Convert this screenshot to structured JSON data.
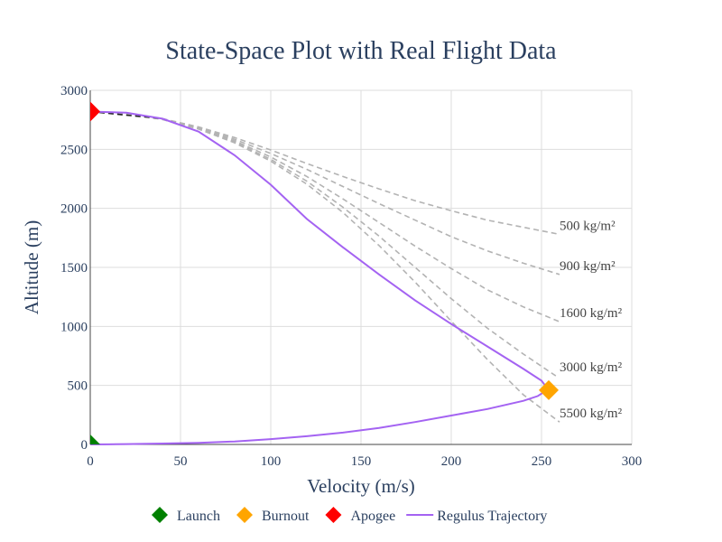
{
  "chart_data": {
    "type": "line",
    "title": "State-Space Plot with Real Flight Data",
    "xlabel": "Velocity (m/s)",
    "ylabel": "Altitude (m)",
    "xlim": [
      0,
      300
    ],
    "ylim": [
      0,
      3000
    ],
    "x_ticks": [
      0,
      50,
      100,
      150,
      200,
      250,
      300
    ],
    "y_ticks": [
      0,
      500,
      1000,
      1500,
      2000,
      2500,
      3000
    ],
    "grid": true,
    "legend_position": "bottom",
    "apogee_altitude": 2820,
    "reference_curves": [
      {
        "label": "500 kg/m²",
        "points": [
          [
            0,
            2820
          ],
          [
            20,
            2805
          ],
          [
            40,
            2760
          ],
          [
            60,
            2690
          ],
          [
            80,
            2600
          ],
          [
            100,
            2495
          ],
          [
            120,
            2380
          ],
          [
            140,
            2270
          ],
          [
            160,
            2165
          ],
          [
            180,
            2065
          ],
          [
            200,
            1980
          ],
          [
            220,
            1900
          ],
          [
            240,
            1840
          ],
          [
            260,
            1780
          ]
        ]
      },
      {
        "label": "900 kg/m²",
        "points": [
          [
            0,
            2820
          ],
          [
            20,
            2805
          ],
          [
            40,
            2760
          ],
          [
            60,
            2685
          ],
          [
            80,
            2585
          ],
          [
            100,
            2465
          ],
          [
            120,
            2330
          ],
          [
            140,
            2185
          ],
          [
            160,
            2040
          ],
          [
            180,
            1900
          ],
          [
            200,
            1760
          ],
          [
            220,
            1640
          ],
          [
            240,
            1535
          ],
          [
            260,
            1440
          ]
        ]
      },
      {
        "label": "1600 kg/m²",
        "points": [
          [
            0,
            2820
          ],
          [
            20,
            2803
          ],
          [
            40,
            2757
          ],
          [
            60,
            2680
          ],
          [
            80,
            2572
          ],
          [
            100,
            2435
          ],
          [
            120,
            2270
          ],
          [
            140,
            2080
          ],
          [
            160,
            1880
          ],
          [
            180,
            1680
          ],
          [
            200,
            1490
          ],
          [
            220,
            1310
          ],
          [
            240,
            1165
          ],
          [
            260,
            1040
          ]
        ]
      },
      {
        "label": "3000 kg/m²",
        "points": [
          [
            0,
            2820
          ],
          [
            20,
            2803
          ],
          [
            40,
            2755
          ],
          [
            60,
            2675
          ],
          [
            80,
            2562
          ],
          [
            100,
            2415
          ],
          [
            120,
            2230
          ],
          [
            140,
            2010
          ],
          [
            160,
            1765
          ],
          [
            180,
            1500
          ],
          [
            200,
            1235
          ],
          [
            220,
            985
          ],
          [
            240,
            765
          ],
          [
            258,
            580
          ]
        ]
      },
      {
        "label": "5500 kg/m²",
        "points": [
          [
            0,
            2820
          ],
          [
            20,
            2802
          ],
          [
            40,
            2753
          ],
          [
            60,
            2672
          ],
          [
            80,
            2555
          ],
          [
            100,
            2400
          ],
          [
            120,
            2205
          ],
          [
            140,
            1965
          ],
          [
            160,
            1685
          ],
          [
            180,
            1375
          ],
          [
            200,
            1045
          ],
          [
            220,
            720
          ],
          [
            240,
            420
          ],
          [
            260,
            190
          ]
        ]
      }
    ],
    "series": [
      {
        "name": "Regulus Trajectory",
        "color": "#a463f2",
        "points": [
          [
            0,
            0
          ],
          [
            10,
            1
          ],
          [
            20,
            3
          ],
          [
            40,
            8
          ],
          [
            60,
            14
          ],
          [
            80,
            25
          ],
          [
            100,
            45
          ],
          [
            120,
            70
          ],
          [
            140,
            100
          ],
          [
            160,
            140
          ],
          [
            180,
            190
          ],
          [
            200,
            245
          ],
          [
            220,
            300
          ],
          [
            240,
            370
          ],
          [
            248,
            410
          ],
          [
            252,
            450
          ],
          [
            253,
            475
          ],
          [
            252,
            500
          ],
          [
            250,
            540
          ],
          [
            240,
            640
          ],
          [
            220,
            830
          ],
          [
            200,
            1020
          ],
          [
            180,
            1220
          ],
          [
            160,
            1440
          ],
          [
            140,
            1670
          ],
          [
            120,
            1910
          ],
          [
            100,
            2200
          ],
          [
            80,
            2450
          ],
          [
            60,
            2650
          ],
          [
            40,
            2760
          ],
          [
            20,
            2810
          ],
          [
            0,
            2820
          ]
        ]
      }
    ],
    "markers": [
      {
        "name": "Launch",
        "x": 0,
        "y": 0,
        "color": "#008000"
      },
      {
        "name": "Burnout",
        "x": 254,
        "y": 460,
        "color": "#ffa500"
      },
      {
        "name": "Apogee",
        "x": 0,
        "y": 2820,
        "color": "#ff0000"
      }
    ],
    "legend": [
      "Launch",
      "Burnout",
      "Apogee",
      "Regulus Trajectory"
    ]
  }
}
